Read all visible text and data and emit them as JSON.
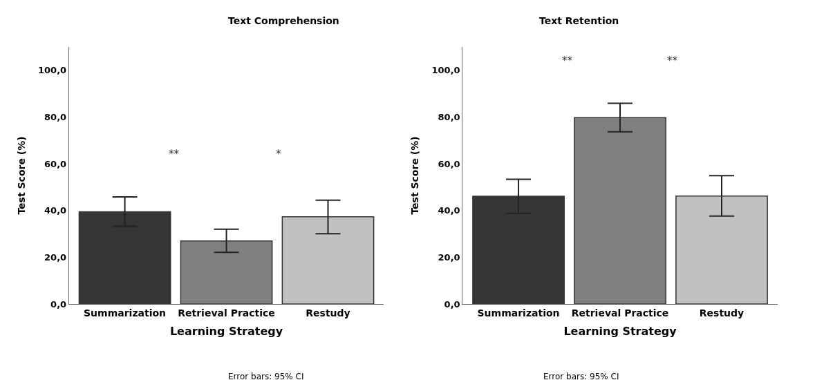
{
  "chart_data": [
    {
      "type": "bar",
      "title": "Text Comprehension",
      "xlabel": "Learning Strategy",
      "ylabel": "Test Score (%)",
      "categories": [
        "Summarization",
        "Retrieval Practice",
        "Restudy"
      ],
      "values": [
        39.5,
        27.0,
        37.3
      ],
      "colors": [
        "#363636",
        "#7f7f7f",
        "#c1c1c1"
      ],
      "errors": [
        [
          33.3,
          45.8
        ],
        [
          22.1,
          32.0
        ],
        [
          30.1,
          44.4
        ]
      ],
      "ylim": [
        0,
        110
      ],
      "yticks": [
        {
          "value": 0,
          "label": "0,0"
        },
        {
          "value": 20,
          "label": "20,0"
        },
        {
          "value": 40,
          "label": "40,0"
        },
        {
          "value": 60,
          "label": "60,0"
        },
        {
          "value": 80,
          "label": "80,0"
        },
        {
          "value": 100,
          "label": "100,0"
        }
      ],
      "annotations": [
        "**",
        "*",
        "Error bars: 95% CI"
      ]
    },
    {
      "type": "bar",
      "title": "Text Retention",
      "xlabel": "Learning Strategy",
      "ylabel": "Test Score (%)",
      "categories": [
        "Summarization",
        "Retrieval Practice",
        "Restudy"
      ],
      "values": [
        46.1,
        79.8,
        46.2
      ],
      "colors": [
        "#363636",
        "#7f7f7f",
        "#c1c1c1"
      ],
      "errors": [
        [
          38.8,
          53.4
        ],
        [
          73.7,
          85.9
        ],
        [
          37.6,
          54.9
        ]
      ],
      "ylim": [
        0,
        110
      ],
      "yticks": [
        {
          "value": 0,
          "label": "0,0"
        },
        {
          "value": 20,
          "label": "20,0"
        },
        {
          "value": 40,
          "label": "40,0"
        },
        {
          "value": 60,
          "label": "60,0"
        },
        {
          "value": 80,
          "label": "80,0"
        },
        {
          "value": 100,
          "label": "100,0"
        }
      ],
      "annotations": [
        "**",
        "**",
        "Error bars: 95% CI"
      ]
    }
  ]
}
